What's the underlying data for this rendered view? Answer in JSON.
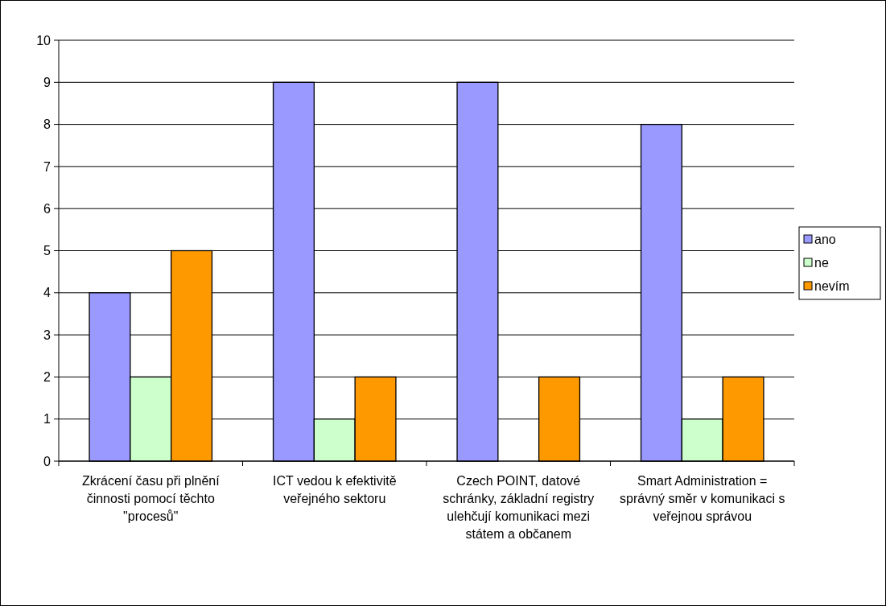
{
  "chart_data": {
    "type": "bar",
    "categories": [
      "Zkrácení času při plnění činnosti pomocí těchto \"procesů\"",
      "ICT vedou k efektivitě veřejného sektoru",
      "Czech POINT, datové schránky, základní registry ulehčují komunikaci mezi státem a občanem",
      "Smart Administration = správný směr v komunikaci s veřejnou správou"
    ],
    "series": [
      {
        "name": "ano",
        "color": "#9999ff",
        "values": [
          4,
          9,
          9,
          8
        ]
      },
      {
        "name": "ne",
        "color": "#ccffcc",
        "values": [
          2,
          1,
          0,
          1
        ]
      },
      {
        "name": "nevím",
        "color": "#ff9900",
        "values": [
          5,
          2,
          2,
          2
        ]
      }
    ],
    "ylim": [
      0,
      10
    ],
    "yticks": [
      0,
      1,
      2,
      3,
      4,
      5,
      6,
      7,
      8,
      9,
      10
    ],
    "grid": "y",
    "legend": "right"
  }
}
